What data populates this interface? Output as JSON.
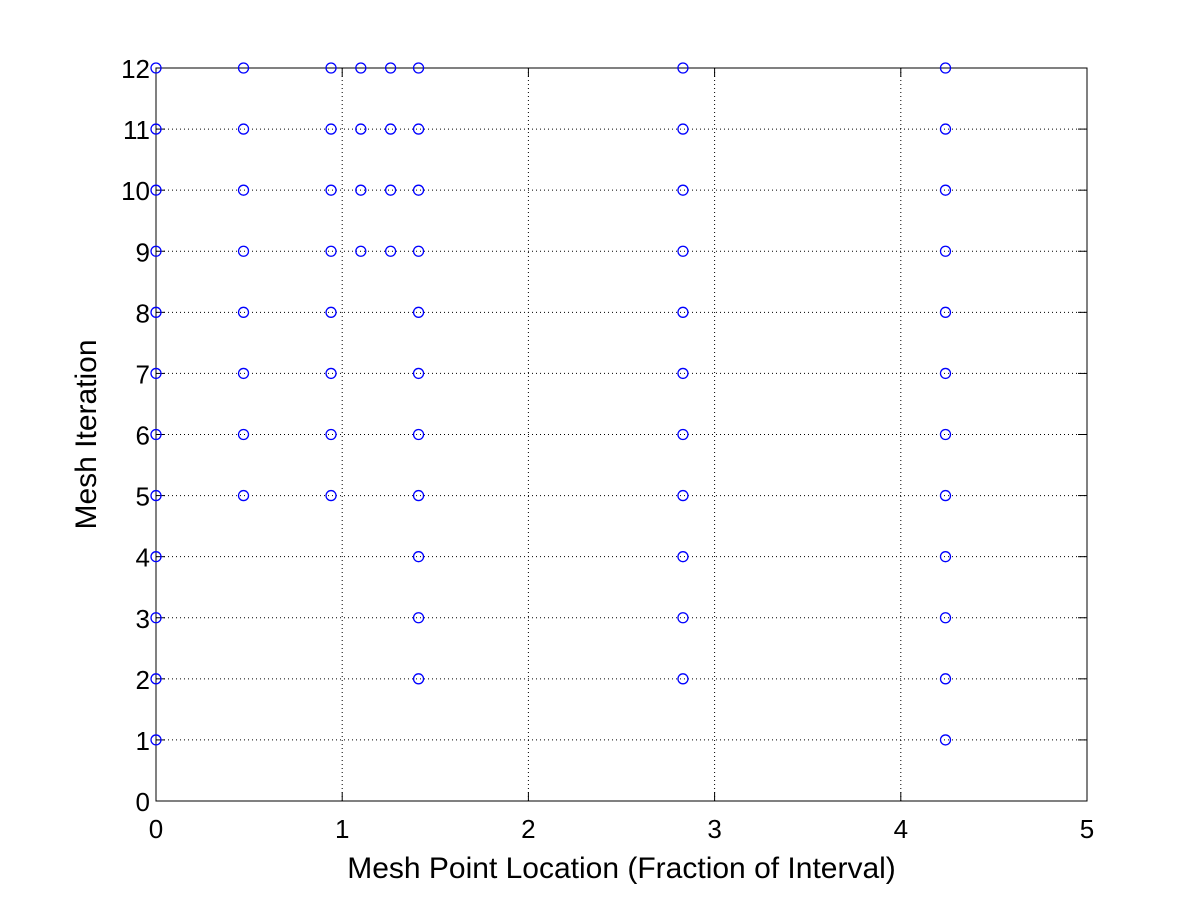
{
  "chart_data": {
    "type": "scatter",
    "title": "",
    "xlabel": "Mesh Point Location (Fraction of Interval)",
    "ylabel": "Mesh Iteration",
    "xlim": [
      0,
      5
    ],
    "ylim": [
      0,
      12
    ],
    "xticks": [
      "0",
      "1",
      "2",
      "3",
      "4",
      "5"
    ],
    "yticks": [
      "0",
      "1",
      "2",
      "3",
      "4",
      "5",
      "6",
      "7",
      "8",
      "9",
      "10",
      "11",
      "12"
    ],
    "grid": true,
    "marker": "circle",
    "marker_color": "#0000ff",
    "rows": [
      {
        "y": 1,
        "x": [
          0,
          4.24
        ]
      },
      {
        "y": 2,
        "x": [
          0,
          1.41,
          2.83,
          4.24
        ]
      },
      {
        "y": 3,
        "x": [
          0,
          1.41,
          2.83,
          4.24
        ]
      },
      {
        "y": 4,
        "x": [
          0,
          1.41,
          2.83,
          4.24
        ]
      },
      {
        "y": 5,
        "x": [
          0,
          0.47,
          0.94,
          1.41,
          2.83,
          4.24
        ]
      },
      {
        "y": 6,
        "x": [
          0,
          0.47,
          0.94,
          1.41,
          2.83,
          4.24
        ]
      },
      {
        "y": 7,
        "x": [
          0,
          0.47,
          0.94,
          1.41,
          2.83,
          4.24
        ]
      },
      {
        "y": 8,
        "x": [
          0,
          0.47,
          0.94,
          1.41,
          2.83,
          4.24
        ]
      },
      {
        "y": 9,
        "x": [
          0,
          0.47,
          0.94,
          1.1,
          1.26,
          1.41,
          2.83,
          4.24
        ]
      },
      {
        "y": 10,
        "x": [
          0,
          0.47,
          0.94,
          1.1,
          1.26,
          1.41,
          2.83,
          4.24
        ]
      },
      {
        "y": 11,
        "x": [
          0,
          0.47,
          0.94,
          1.1,
          1.26,
          1.41,
          2.83,
          4.24
        ]
      },
      {
        "y": 12,
        "x": [
          0,
          0.47,
          0.94,
          1.1,
          1.26,
          1.41,
          2.83,
          4.24
        ]
      }
    ]
  }
}
